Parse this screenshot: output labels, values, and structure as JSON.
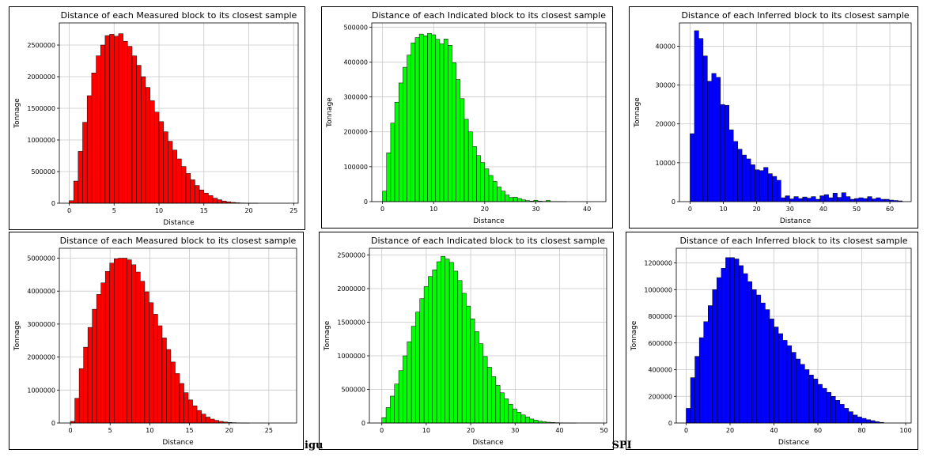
{
  "caption": {
    "left": "igu",
    "right": "SPI"
  },
  "chart_data": [
    {
      "type": "bar",
      "title": "Distance of each Measured block to its closest sample",
      "xlabel": "Distance",
      "ylabel": "Tonnage",
      "color": "#ff0000",
      "bin": 0.5,
      "x0": 0,
      "xlim": [
        -1.1,
        25.5
      ],
      "ylim": [
        0,
        2850000
      ],
      "xticks": [
        0,
        5,
        10,
        15,
        20,
        25
      ],
      "yticks": [
        0,
        500000,
        1000000,
        1500000,
        2000000,
        2500000
      ],
      "xticklabels": [
        "0",
        "5",
        "10",
        "15",
        "20",
        "25"
      ],
      "yticklabels": [
        "0",
        "500000",
        "1000000",
        "1500000",
        "2000000",
        "2500000"
      ],
      "grid": true,
      "values": [
        40000,
        350000,
        820000,
        1280000,
        1700000,
        2060000,
        2330000,
        2500000,
        2650000,
        2670000,
        2640000,
        2680000,
        2560000,
        2480000,
        2330000,
        2180000,
        2000000,
        1830000,
        1620000,
        1440000,
        1290000,
        1130000,
        980000,
        840000,
        700000,
        580000,
        470000,
        370000,
        280000,
        210000,
        160000,
        120000,
        80000,
        55000,
        35000,
        22000,
        13000,
        7000,
        4000,
        2000,
        1000,
        500,
        0,
        0,
        0,
        0,
        0,
        0,
        0
      ]
    },
    {
      "type": "bar",
      "title": "Distance of each Indicated block to its closest sample",
      "xlabel": "Distance",
      "ylabel": "Tonnage",
      "color": "#00ff00",
      "bin": 0.8,
      "x0": 0,
      "xlim": [
        -2.1,
        43.7
      ],
      "ylim": [
        0,
        512000
      ],
      "xticks": [
        0,
        10,
        20,
        30,
        40
      ],
      "yticks": [
        0,
        100000,
        200000,
        300000,
        400000,
        500000
      ],
      "xticklabels": [
        "0",
        "10",
        "20",
        "30",
        "40"
      ],
      "yticklabels": [
        "0",
        "100000",
        "200000",
        "300000",
        "400000",
        "500000"
      ],
      "grid": true,
      "values": [
        30000,
        140000,
        225000,
        285000,
        340000,
        385000,
        420000,
        455000,
        470000,
        480000,
        475000,
        482000,
        478000,
        465000,
        452000,
        466000,
        448000,
        398000,
        350000,
        295000,
        236000,
        200000,
        158000,
        132000,
        112000,
        94000,
        75000,
        58000,
        42000,
        30000,
        19000,
        12000,
        13000,
        9000,
        5000,
        3000,
        1500,
        4000,
        1500,
        800,
        3500,
        500,
        300,
        200,
        100,
        0,
        0,
        0,
        0,
        0,
        0
      ]
    },
    {
      "type": "bar",
      "title": "Distance of each Inferred block to its closest sample",
      "xlabel": "Distance",
      "ylabel": "Tonnage",
      "color": "#0000ff",
      "bin": 1.3,
      "x0": 0,
      "xlim": [
        -3.2,
        66.4
      ],
      "ylim": [
        0,
        46000
      ],
      "xticks": [
        0,
        10,
        20,
        30,
        40,
        50,
        60
      ],
      "yticks": [
        0,
        10000,
        20000,
        30000,
        40000
      ],
      "xticklabels": [
        "0",
        "10",
        "20",
        "30",
        "40",
        "50",
        "60"
      ],
      "yticklabels": [
        "0",
        "10000",
        "20000",
        "30000",
        "40000"
      ],
      "grid": true,
      "values": [
        17500,
        44000,
        42000,
        37500,
        31000,
        33000,
        32000,
        25000,
        24800,
        18500,
        15500,
        13500,
        12000,
        11000,
        9500,
        8200,
        8000,
        8800,
        7200,
        6500,
        5500,
        1000,
        1500,
        700,
        1300,
        800,
        1200,
        900,
        1300,
        600,
        1500,
        1800,
        1000,
        2200,
        1100,
        2300,
        1300,
        600,
        800,
        1000,
        800,
        1300,
        700,
        1000,
        600,
        600,
        400,
        300,
        200
      ]
    },
    {
      "type": "bar",
      "title": "Distance of each Measured block to its closest sample",
      "xlabel": "Distance",
      "ylabel": "Tonnage",
      "color": "#ff0000",
      "bin": 0.55,
      "x0": 0,
      "xlim": [
        -1.4,
        28.5
      ],
      "ylim": [
        0,
        5300000
      ],
      "xticks": [
        0,
        5,
        10,
        15,
        20,
        25
      ],
      "yticks": [
        0,
        1000000,
        2000000,
        3000000,
        4000000,
        5000000
      ],
      "xticklabels": [
        "0",
        "5",
        "10",
        "15",
        "20",
        "25"
      ],
      "yticklabels": [
        "0",
        "1000000",
        "2000000",
        "3000000",
        "4000000",
        "5000000"
      ],
      "grid": true,
      "values": [
        50000,
        750000,
        1650000,
        2300000,
        2900000,
        3450000,
        3900000,
        4250000,
        4600000,
        4850000,
        4980000,
        5000000,
        5000000,
        4950000,
        4800000,
        4580000,
        4300000,
        3980000,
        3650000,
        3300000,
        2950000,
        2580000,
        2230000,
        1850000,
        1500000,
        1200000,
        920000,
        700000,
        520000,
        380000,
        270000,
        180000,
        120000,
        80000,
        50000,
        30000,
        18000,
        10000,
        5000,
        2000,
        1000,
        0,
        0,
        0,
        0,
        0,
        0,
        0,
        0,
        0,
        0
      ]
    },
    {
      "type": "bar",
      "title": "Distance of each Indicated block to its closest sample",
      "xlabel": "Distance",
      "ylabel": "Tonnage",
      "color": "#00ff00",
      "bin": 0.95,
      "x0": 0,
      "xlim": [
        -2.8,
        50.6
      ],
      "ylim": [
        0,
        2600000
      ],
      "xticks": [
        0,
        10,
        20,
        30,
        40,
        50
      ],
      "yticks": [
        0,
        500000,
        1000000,
        1500000,
        2000000,
        2500000
      ],
      "xticklabels": [
        "0",
        "10",
        "20",
        "30",
        "40",
        "50"
      ],
      "yticklabels": [
        "0",
        "500000",
        "1000000",
        "1500000",
        "2000000",
        "2500000"
      ],
      "grid": true,
      "values": [
        80000,
        230000,
        400000,
        580000,
        780000,
        1000000,
        1210000,
        1440000,
        1650000,
        1850000,
        2030000,
        2180000,
        2280000,
        2400000,
        2480000,
        2440000,
        2390000,
        2260000,
        2120000,
        1930000,
        1740000,
        1550000,
        1360000,
        1180000,
        990000,
        830000,
        690000,
        560000,
        450000,
        360000,
        280000,
        210000,
        160000,
        120000,
        90000,
        60000,
        42000,
        28000,
        18000,
        12000,
        8000,
        5000,
        3000,
        2000,
        1000,
        500,
        0,
        0,
        0
      ]
    },
    {
      "type": "bar",
      "title": "Distance of each Inferred block to its closest sample",
      "xlabel": "Distance",
      "ylabel": "Tonnage",
      "color": "#0000ff",
      "bin": 2.0,
      "x0": 0,
      "xlim": [
        -4.5,
        102.5
      ],
      "ylim": [
        0,
        1310000
      ],
      "xticks": [
        0,
        20,
        40,
        60,
        80,
        100
      ],
      "yticks": [
        0,
        200000,
        400000,
        600000,
        800000,
        1000000,
        1200000
      ],
      "xticklabels": [
        "0",
        "20",
        "40",
        "60",
        "80",
        "100"
      ],
      "yticklabels": [
        "0",
        "200000",
        "400000",
        "600000",
        "800000",
        "1000000",
        "1200000"
      ],
      "grid": true,
      "values": [
        110000,
        340000,
        500000,
        640000,
        760000,
        880000,
        1000000,
        1090000,
        1160000,
        1240000,
        1240000,
        1230000,
        1180000,
        1120000,
        1060000,
        1000000,
        960000,
        900000,
        850000,
        780000,
        720000,
        670000,
        620000,
        580000,
        530000,
        480000,
        440000,
        400000,
        360000,
        330000,
        290000,
        260000,
        230000,
        200000,
        170000,
        140000,
        110000,
        85000,
        60000,
        45000,
        35000,
        25000,
        18000,
        10000,
        5000,
        0
      ]
    }
  ]
}
